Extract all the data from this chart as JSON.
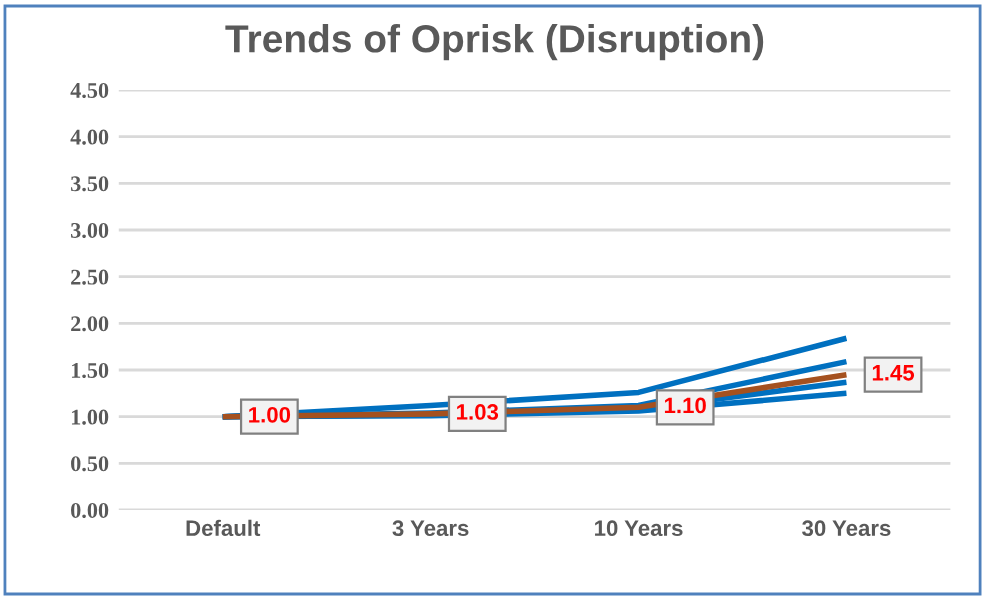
{
  "chart_data": {
    "type": "line",
    "title": "Trends of Oprisk (Disruption)",
    "categories": [
      "Default",
      "3 Years",
      "10 Years",
      "30 Years"
    ],
    "series": [
      {
        "color": "#0070c0",
        "values": [
          1.0,
          1.12,
          1.26,
          1.84
        ]
      },
      {
        "color": "#0070c0",
        "values": [
          1.0,
          1.04,
          1.12,
          1.59
        ]
      },
      {
        "color": "#0070c0",
        "values": [
          1.0,
          1.02,
          1.08,
          1.37
        ]
      },
      {
        "color": "#0070c0",
        "values": [
          1.0,
          1.01,
          1.06,
          1.25
        ]
      },
      {
        "color": "#a5511f",
        "values": [
          1.0,
          1.03,
          1.1,
          1.45
        ],
        "value_labels": [
          "1.00",
          "1.03",
          "1.10",
          "1.45"
        ]
      }
    ],
    "ylim": [
      0,
      4.5
    ],
    "yticks": [
      {
        "value": 0,
        "label": "0.00"
      },
      {
        "value": 0.5,
        "label": "0.50"
      },
      {
        "value": 1,
        "label": "1.00"
      },
      {
        "value": 1.5,
        "label": "1.50"
      },
      {
        "value": 2,
        "label": "2.00"
      },
      {
        "value": 2.5,
        "label": "2.50"
      },
      {
        "value": 3,
        "label": "3.00"
      },
      {
        "value": 3.5,
        "label": "3.50"
      },
      {
        "value": 4,
        "label": "4.00"
      },
      {
        "value": 4.5,
        "label": "4.50"
      }
    ],
    "grid": "y",
    "line_style": "solid"
  }
}
